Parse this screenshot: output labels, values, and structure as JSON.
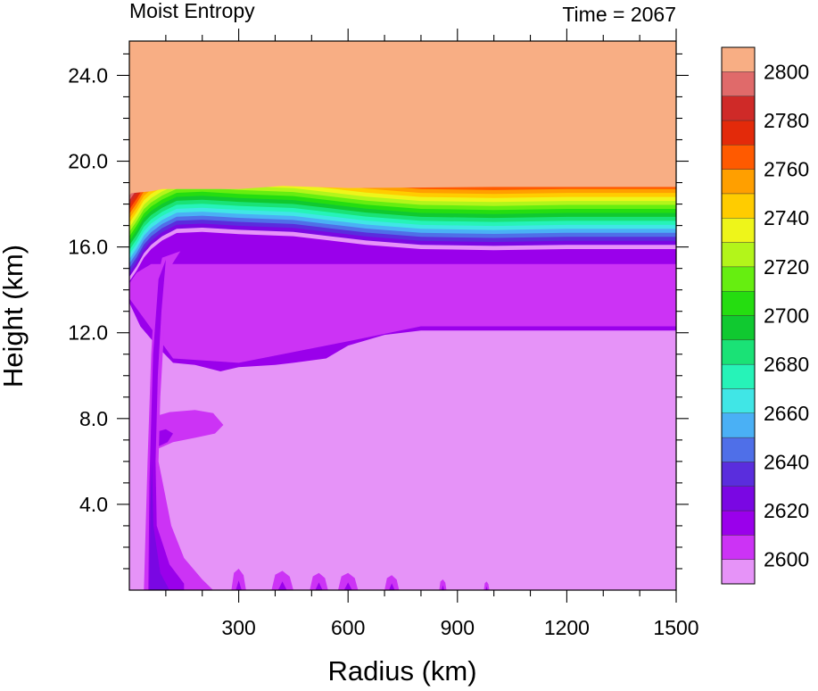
{
  "chart_data": {
    "type": "heatmap",
    "title": "Moist Entropy",
    "subtitle": "Time = 2067",
    "xlabel": "Radius (km)",
    "ylabel": "Height (km)",
    "xlim": [
      0,
      1500
    ],
    "ylim": [
      0,
      25.6
    ],
    "x_ticks": [
      300,
      600,
      900,
      1200,
      1500
    ],
    "x_tick_labels": [
      "300",
      "600",
      "900",
      "1200",
      "1500"
    ],
    "y_ticks": [
      4,
      8,
      12,
      16,
      20,
      24
    ],
    "y_tick_labels": [
      "4.0",
      "8.0",
      "12.0",
      "16.0",
      "20.0",
      "24.0"
    ],
    "colorbar": {
      "levels": [
        2600,
        2610,
        2620,
        2630,
        2640,
        2650,
        2660,
        2670,
        2680,
        2690,
        2700,
        2710,
        2720,
        2730,
        2740,
        2750,
        2760,
        2770,
        2780,
        2790,
        2800
      ],
      "colors": [
        "#e693f8",
        "#cc33f5",
        "#9a00eb",
        "#7a07e3",
        "#5a2ddd",
        "#4f6fe8",
        "#4ab0f5",
        "#40e6e6",
        "#26f3b8",
        "#1ae276",
        "#10c930",
        "#25dd10",
        "#66ee10",
        "#b3f51a",
        "#eef51a",
        "#ffcc00",
        "#ff9f00",
        "#ff5a00",
        "#e32a0a",
        "#cf2a28",
        "#e06a6a",
        "#f8ae84"
      ],
      "labels": [
        "2600",
        "2620",
        "2640",
        "2660",
        "2680",
        "2700",
        "2720",
        "2740",
        "2760",
        "2780",
        "2800"
      ]
    },
    "grid": false,
    "legend": "colorbar-right"
  }
}
